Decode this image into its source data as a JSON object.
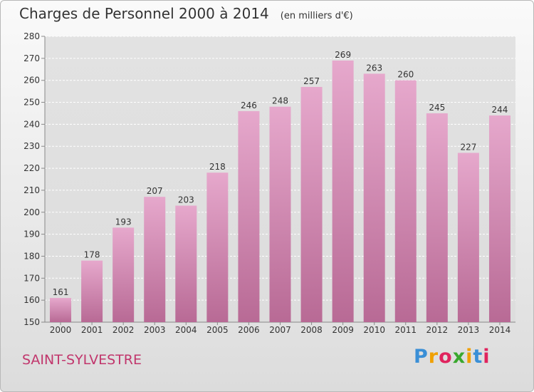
{
  "header": {
    "title": "Charges de Personnel 2000 à 2014",
    "subtitle": "(en milliers d'€)"
  },
  "footer": {
    "commune": "SAINT-SYLVESTRE",
    "logo_letters": [
      "P",
      "r",
      "o",
      "x",
      "i",
      "t",
      "i"
    ],
    "logo_colors": [
      "#3a8fd6",
      "#f0a000",
      "#e0245e",
      "#3aa82e",
      "#f0a000",
      "#3a8fd6",
      "#e0245e"
    ]
  },
  "chart_data": {
    "type": "bar",
    "title": "Charges de Personnel 2000 à 2014",
    "subtitle": "(en milliers d'€)",
    "xlabel": "",
    "ylabel": "",
    "categories": [
      "2000",
      "2001",
      "2002",
      "2003",
      "2004",
      "2005",
      "2006",
      "2007",
      "2008",
      "2009",
      "2010",
      "2011",
      "2012",
      "2013",
      "2014"
    ],
    "values": [
      161,
      178,
      193,
      207,
      203,
      218,
      246,
      248,
      257,
      269,
      263,
      260,
      245,
      227,
      244
    ],
    "ylim": [
      150,
      280
    ],
    "yticks": [
      150,
      160,
      170,
      180,
      190,
      200,
      210,
      220,
      230,
      240,
      250,
      260,
      270,
      280
    ],
    "grid": true,
    "bar_color": "#d98fb5"
  }
}
